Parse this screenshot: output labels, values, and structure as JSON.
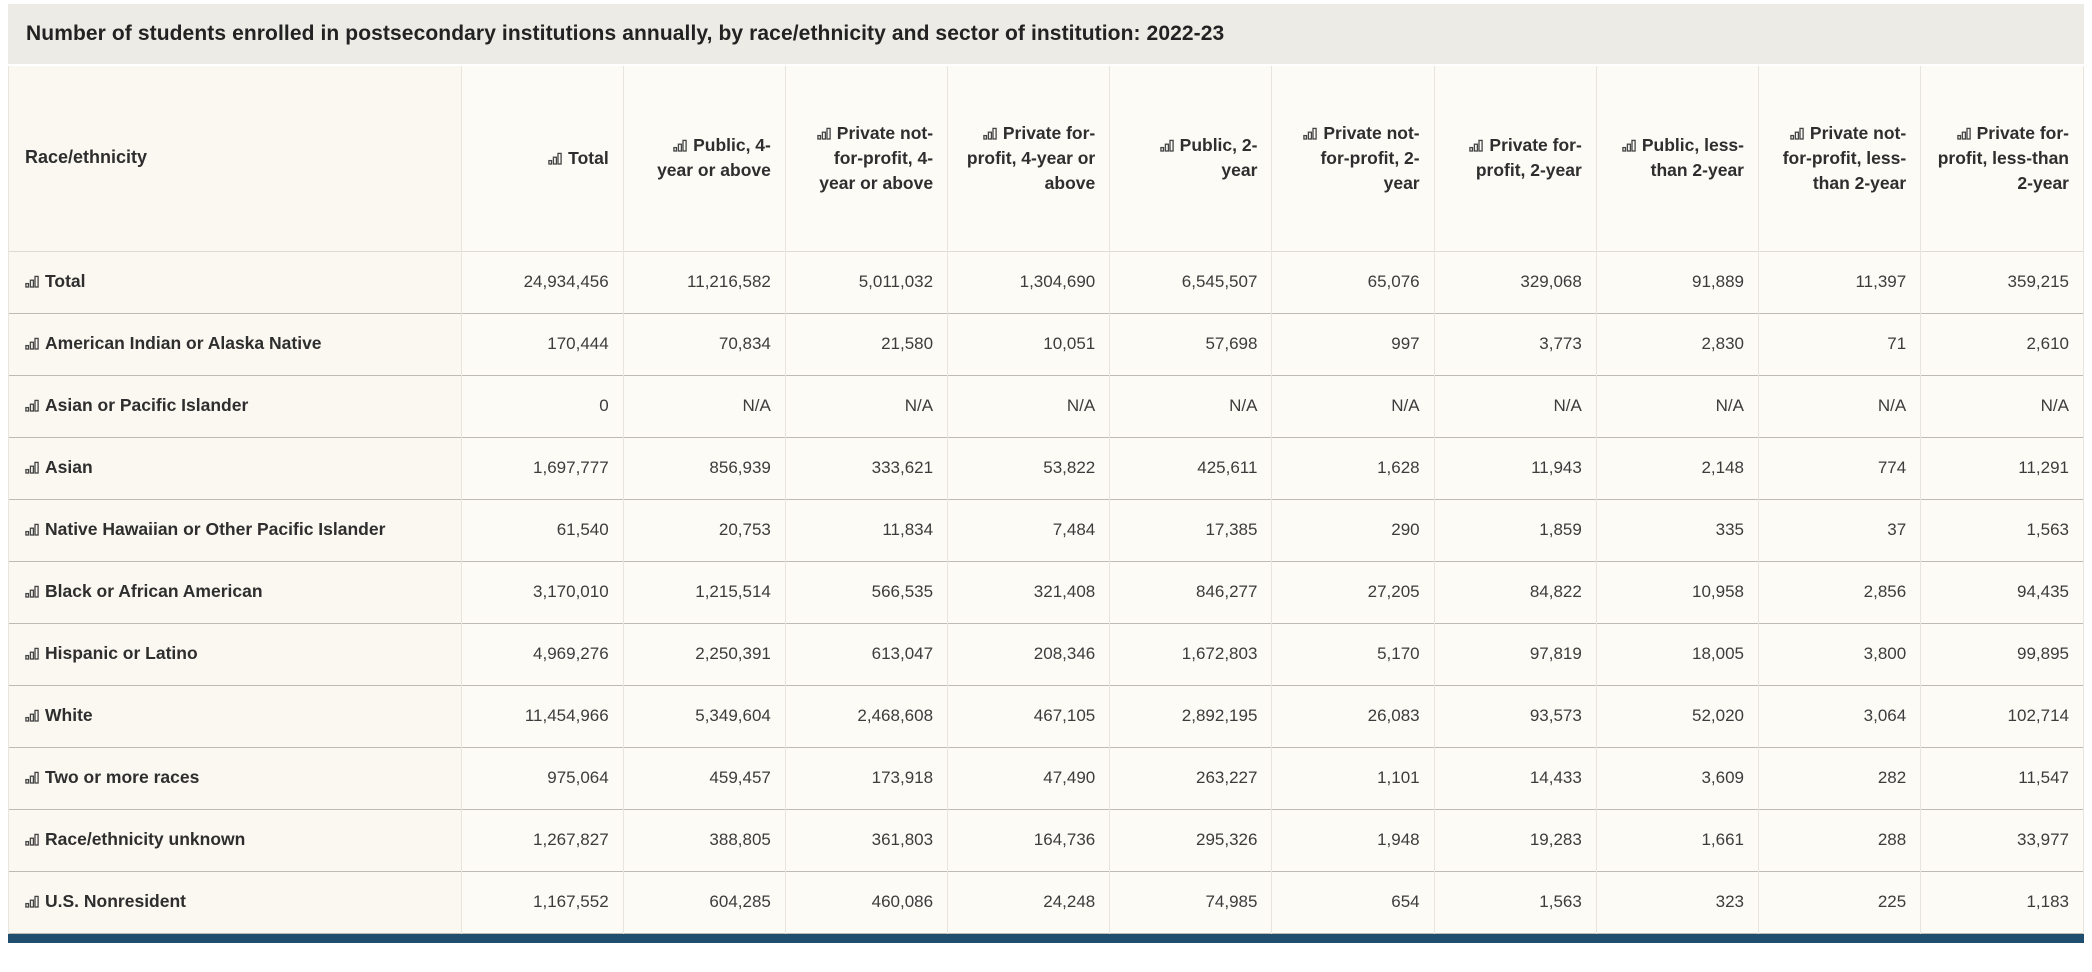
{
  "chart_data": {
    "type": "table",
    "title": "Number of students enrolled in postsecondary institutions annually, by race/ethnicity and sector of institution: 2022-23",
    "row_header_label": "Race/ethnicity",
    "columns": [
      "Total",
      "Public, 4-year or above",
      "Private not-for-profit, 4-year or above",
      "Private for-profit, 4-year or above",
      "Public, 2-year",
      "Private not-for-profit, 2-year",
      "Private for-profit, 2-year",
      "Public, less-than 2-year",
      "Private not-for-profit, less-than 2-year",
      "Private for-profit, less-than 2-year"
    ],
    "rows": [
      {
        "label": "Total",
        "values": [
          "24,934,456",
          "11,216,582",
          "5,011,032",
          "1,304,690",
          "6,545,507",
          "65,076",
          "329,068",
          "91,889",
          "11,397",
          "359,215"
        ]
      },
      {
        "label": "American Indian or Alaska Native",
        "values": [
          "170,444",
          "70,834",
          "21,580",
          "10,051",
          "57,698",
          "997",
          "3,773",
          "2,830",
          "71",
          "2,610"
        ]
      },
      {
        "label": "Asian or Pacific Islander",
        "values": [
          "0",
          "N/A",
          "N/A",
          "N/A",
          "N/A",
          "N/A",
          "N/A",
          "N/A",
          "N/A",
          "N/A"
        ]
      },
      {
        "label": "Asian",
        "values": [
          "1,697,777",
          "856,939",
          "333,621",
          "53,822",
          "425,611",
          "1,628",
          "11,943",
          "2,148",
          "774",
          "11,291"
        ]
      },
      {
        "label": "Native Hawaiian or Other Pacific Islander",
        "values": [
          "61,540",
          "20,753",
          "11,834",
          "7,484",
          "17,385",
          "290",
          "1,859",
          "335",
          "37",
          "1,563"
        ]
      },
      {
        "label": "Black or African American",
        "values": [
          "3,170,010",
          "1,215,514",
          "566,535",
          "321,408",
          "846,277",
          "27,205",
          "84,822",
          "10,958",
          "2,856",
          "94,435"
        ]
      },
      {
        "label": "Hispanic or Latino",
        "values": [
          "4,969,276",
          "2,250,391",
          "613,047",
          "208,346",
          "1,672,803",
          "5,170",
          "97,819",
          "18,005",
          "3,800",
          "99,895"
        ]
      },
      {
        "label": "White",
        "values": [
          "11,454,966",
          "5,349,604",
          "2,468,608",
          "467,105",
          "2,892,195",
          "26,083",
          "93,573",
          "52,020",
          "3,064",
          "102,714"
        ]
      },
      {
        "label": "Two or more races",
        "values": [
          "975,064",
          "459,457",
          "173,918",
          "47,490",
          "263,227",
          "1,101",
          "14,433",
          "3,609",
          "282",
          "11,547"
        ]
      },
      {
        "label": "Race/ethnicity unknown",
        "values": [
          "1,267,827",
          "388,805",
          "361,803",
          "164,736",
          "295,326",
          "1,948",
          "19,283",
          "1,661",
          "288",
          "33,977"
        ]
      },
      {
        "label": "U.S. Nonresident",
        "values": [
          "1,167,552",
          "604,285",
          "460,086",
          "24,248",
          "74,985",
          "654",
          "1,563",
          "323",
          "225",
          "1,183"
        ]
      }
    ]
  },
  "icons": {
    "cell_icon": "bar-chart-icon"
  },
  "colors": {
    "title_bar_bg": "#ECEBE5",
    "table_bg": "#FCFBF6",
    "row_label_bg": "#FAF8F1",
    "text": "#2E2E2E",
    "row_border": "#BDBBB4",
    "column_border": "#E7E5DE",
    "footer_bar": "#1F4E6E"
  }
}
